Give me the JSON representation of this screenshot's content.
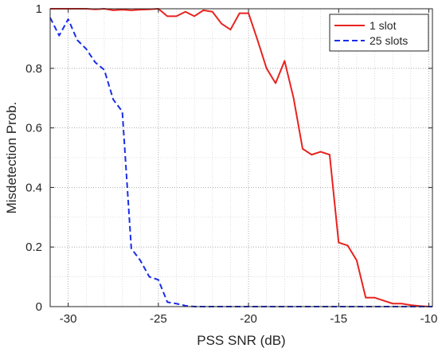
{
  "chart_data": {
    "type": "line",
    "title": "",
    "xlabel": "PSS SNR (dB)",
    "ylabel": "Misdetection Prob.",
    "xlim": [
      -31,
      -9.8
    ],
    "ylim": [
      0,
      1
    ],
    "grid": true,
    "grid_style": "dotted",
    "xticks": [
      -30,
      -25,
      -20,
      -15,
      -10
    ],
    "yticks": [
      0,
      0.2,
      0.4,
      0.6,
      0.8,
      1
    ],
    "xtick_labels": [
      "-30",
      "-25",
      "-20",
      "-15",
      "-10"
    ],
    "ytick_labels": [
      "0",
      "0.2",
      "0.4",
      "0.6",
      "0.8",
      "1"
    ],
    "legend": {
      "placement": "top-right"
    },
    "series": [
      {
        "name": "1 slot",
        "color": "#e8231f",
        "dash": "solid",
        "x": [
          -31,
          -30.5,
          -30,
          -29.5,
          -29,
          -28.5,
          -28,
          -27.5,
          -27,
          -26.5,
          -26,
          -25.5,
          -25,
          -24.5,
          -24,
          -23.5,
          -23,
          -22.5,
          -22,
          -21.5,
          -21,
          -20.5,
          -20,
          -19.5,
          -19,
          -18.5,
          -18,
          -17.5,
          -17,
          -16.5,
          -16,
          -15.5,
          -15,
          -14.5,
          -14,
          -13.5,
          -13,
          -12.5,
          -12,
          -11.5,
          -11,
          -10.5,
          -10,
          -9.8
        ],
        "y": [
          1,
          1,
          1,
          1,
          1,
          0.998,
          1,
          0.995,
          0.997,
          0.995,
          0.997,
          0.998,
          1,
          0.975,
          0.975,
          0.99,
          0.975,
          0.995,
          0.99,
          0.95,
          0.93,
          0.985,
          0.985,
          0.895,
          0.8,
          0.75,
          0.825,
          0.7,
          0.53,
          0.51,
          0.52,
          0.51,
          0.215,
          0.205,
          0.155,
          0.03,
          0.03,
          0.02,
          0.01,
          0.01,
          0.005,
          0.002,
          0,
          0
        ]
      },
      {
        "name": "25 slots",
        "color": "#1a2ee8",
        "dash": "dashed",
        "x": [
          -31,
          -30.5,
          -30,
          -29.5,
          -29,
          -28.5,
          -28,
          -27.5,
          -27,
          -26.5,
          -26,
          -25.5,
          -25,
          -24.5,
          -24,
          -23.5,
          -23,
          -22.5,
          -22,
          -21.5,
          -21,
          -20.5,
          -20,
          -19.5,
          -19,
          -18.5,
          -18,
          -17.5,
          -17,
          -16.5,
          -16,
          -15.5,
          -15,
          -14.5,
          -14,
          -13.5,
          -13,
          -12.5,
          -12,
          -11.5,
          -11,
          -10.5,
          -10,
          -9.8
        ],
        "y": [
          0.97,
          0.91,
          0.965,
          0.895,
          0.865,
          0.82,
          0.795,
          0.695,
          0.655,
          0.195,
          0.155,
          0.1,
          0.09,
          0.015,
          0.01,
          0.003,
          0,
          0,
          0,
          0,
          0,
          0,
          0,
          0,
          0,
          0,
          0,
          0,
          0,
          0,
          0,
          0,
          0,
          0,
          0,
          0,
          0,
          0,
          0,
          0,
          0,
          0,
          0,
          0
        ]
      }
    ]
  }
}
